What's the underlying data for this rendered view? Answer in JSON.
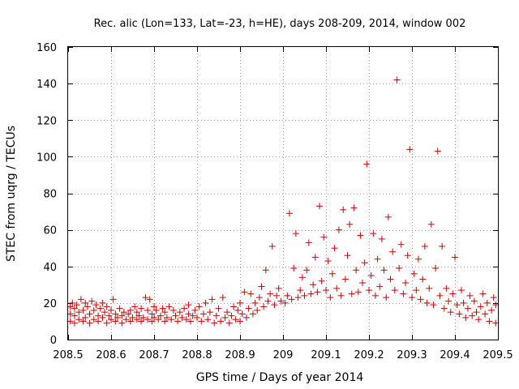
{
  "chart_data": {
    "type": "scatter",
    "title": "Rec. alic (Lon=133, Lat=-23, h=HE), days 208-209, 2014, window 002",
    "xlabel": "GPS time / Days of year 2014",
    "ylabel": "STEC from uqrg / TECUs",
    "xlim": [
      208.5,
      209.5
    ],
    "ylim": [
      0,
      160
    ],
    "x_ticks": [
      208.5,
      208.6,
      208.7,
      208.8,
      208.9,
      209.0,
      209.1,
      209.2,
      209.3,
      209.4,
      209.5
    ],
    "x_tick_labels": [
      "208.5",
      "208.6",
      "208.7",
      "208.8",
      "208.9",
      "209",
      "209.1",
      "209.2",
      "209.3",
      "209.4",
      "209.5"
    ],
    "y_ticks": [
      0,
      20,
      40,
      60,
      80,
      100,
      120,
      140,
      160
    ],
    "y_tick_labels": [
      "0",
      "20",
      "40",
      "60",
      "80",
      "100",
      "120",
      "140",
      "160"
    ],
    "grid": true,
    "marker": "+",
    "marker_color": "#cc0000",
    "series": [
      {
        "name": "STEC",
        "points": [
          [
            208.505,
            10
          ],
          [
            208.505,
            14
          ],
          [
            208.505,
            18
          ],
          [
            208.51,
            20
          ],
          [
            208.515,
            9
          ],
          [
            208.515,
            13
          ],
          [
            208.515,
            17
          ],
          [
            208.52,
            19
          ],
          [
            208.525,
            11
          ],
          [
            208.525,
            15
          ],
          [
            208.53,
            22
          ],
          [
            208.535,
            10
          ],
          [
            208.535,
            16
          ],
          [
            208.54,
            12
          ],
          [
            208.54,
            20
          ],
          [
            208.545,
            18
          ],
          [
            208.55,
            9
          ],
          [
            208.55,
            14
          ],
          [
            208.555,
            21
          ],
          [
            208.56,
            11
          ],
          [
            208.56,
            16
          ],
          [
            208.565,
            19
          ],
          [
            208.57,
            10
          ],
          [
            208.57,
            13
          ],
          [
            208.575,
            17
          ],
          [
            208.58,
            12
          ],
          [
            208.58,
            20
          ],
          [
            208.585,
            15
          ],
          [
            208.59,
            9
          ],
          [
            208.59,
            18
          ],
          [
            208.595,
            13
          ],
          [
            208.6,
            11
          ],
          [
            208.6,
            16
          ],
          [
            208.605,
            22
          ],
          [
            208.61,
            10
          ],
          [
            208.61,
            14
          ],
          [
            208.615,
            12
          ],
          [
            208.62,
            17
          ],
          [
            208.625,
            9
          ],
          [
            208.625,
            13
          ],
          [
            208.63,
            15
          ],
          [
            208.635,
            11
          ],
          [
            208.64,
            14
          ],
          [
            208.645,
            10
          ],
          [
            208.645,
            16
          ],
          [
            208.65,
            12
          ],
          [
            208.655,
            18
          ],
          [
            208.66,
            11
          ],
          [
            208.66,
            15
          ],
          [
            208.665,
            13
          ],
          [
            208.67,
            10
          ],
          [
            208.67,
            17
          ],
          [
            208.675,
            12
          ],
          [
            208.68,
            23
          ],
          [
            208.685,
            11
          ],
          [
            208.685,
            16
          ],
          [
            208.69,
            22
          ],
          [
            208.695,
            10
          ],
          [
            208.695,
            14
          ],
          [
            208.7,
            12
          ],
          [
            208.7,
            18
          ],
          [
            208.705,
            16
          ],
          [
            208.71,
            11
          ],
          [
            208.715,
            13
          ],
          [
            208.72,
            17
          ],
          [
            208.725,
            10
          ],
          [
            208.725,
            15
          ],
          [
            208.73,
            12
          ],
          [
            208.735,
            18
          ],
          [
            208.74,
            11
          ],
          [
            208.745,
            16
          ],
          [
            208.75,
            13
          ],
          [
            208.755,
            10
          ],
          [
            208.76,
            15
          ],
          [
            208.765,
            12
          ],
          [
            208.77,
            17
          ],
          [
            208.775,
            11
          ],
          [
            208.78,
            14
          ],
          [
            208.78,
            19
          ],
          [
            208.785,
            10
          ],
          [
            208.79,
            13
          ],
          [
            208.795,
            16
          ],
          [
            208.8,
            12
          ],
          [
            208.805,
            18
          ],
          [
            208.81,
            10
          ],
          [
            208.815,
            14
          ],
          [
            208.82,
            20
          ],
          [
            208.825,
            11
          ],
          [
            208.83,
            15
          ],
          [
            208.835,
            22
          ],
          [
            208.84,
            9
          ],
          [
            208.845,
            13
          ],
          [
            208.85,
            17
          ],
          [
            208.855,
            10
          ],
          [
            208.86,
            23
          ],
          [
            208.865,
            12
          ],
          [
            208.87,
            15
          ],
          [
            208.875,
            9
          ],
          [
            208.88,
            13
          ],
          [
            208.885,
            18
          ],
          [
            208.89,
            11
          ],
          [
            208.895,
            16
          ],
          [
            208.9,
            10
          ],
          [
            208.9,
            20
          ],
          [
            208.905,
            14
          ],
          [
            208.91,
            26
          ],
          [
            208.915,
            12
          ],
          [
            208.92,
            17
          ],
          [
            208.925,
            25
          ],
          [
            208.93,
            14
          ],
          [
            208.935,
            20
          ],
          [
            208.94,
            16
          ],
          [
            208.945,
            23
          ],
          [
            208.95,
            29
          ],
          [
            208.955,
            18
          ],
          [
            208.96,
            38
          ],
          [
            208.965,
            21
          ],
          [
            208.97,
            25
          ],
          [
            208.975,
            51
          ],
          [
            208.98,
            19
          ],
          [
            208.985,
            24
          ],
          [
            208.99,
            28
          ],
          [
            208.995,
            21
          ],
          [
            209.005,
            20
          ],
          [
            209.01,
            24
          ],
          [
            209.015,
            69
          ],
          [
            209.02,
            22
          ],
          [
            209.025,
            39
          ],
          [
            209.03,
            58
          ],
          [
            209.035,
            23
          ],
          [
            209.04,
            27
          ],
          [
            209.045,
            34
          ],
          [
            209.05,
            24
          ],
          [
            209.055,
            38
          ],
          [
            209.06,
            53
          ],
          [
            209.065,
            25
          ],
          [
            209.07,
            30
          ],
          [
            209.075,
            45
          ],
          [
            209.08,
            26
          ],
          [
            209.085,
            73
          ],
          [
            209.09,
            32
          ],
          [
            209.095,
            56
          ],
          [
            209.1,
            27
          ],
          [
            209.105,
            43
          ],
          [
            209.11,
            23
          ],
          [
            209.115,
            36
          ],
          [
            209.12,
            50
          ],
          [
            209.125,
            28
          ],
          [
            209.13,
            60
          ],
          [
            209.135,
            24
          ],
          [
            209.14,
            71
          ],
          [
            209.145,
            33
          ],
          [
            209.15,
            46
          ],
          [
            209.155,
            63
          ],
          [
            209.16,
            25
          ],
          [
            209.165,
            72
          ],
          [
            209.17,
            38
          ],
          [
            209.175,
            26
          ],
          [
            209.18,
            57
          ],
          [
            209.185,
            31
          ],
          [
            209.19,
            42
          ],
          [
            209.195,
            96
          ],
          [
            209.2,
            27
          ],
          [
            209.205,
            35
          ],
          [
            209.21,
            58
          ],
          [
            209.215,
            24
          ],
          [
            209.22,
            44
          ],
          [
            209.225,
            29
          ],
          [
            209.23,
            55
          ],
          [
            209.235,
            38
          ],
          [
            209.24,
            23
          ],
          [
            209.245,
            67
          ],
          [
            209.25,
            33
          ],
          [
            209.255,
            48
          ],
          [
            209.26,
            27
          ],
          [
            209.265,
            142
          ],
          [
            209.27,
            39
          ],
          [
            209.275,
            52
          ],
          [
            209.28,
            25
          ],
          [
            209.285,
            31
          ],
          [
            209.29,
            46
          ],
          [
            209.295,
            104
          ],
          [
            209.3,
            23
          ],
          [
            209.305,
            36
          ],
          [
            209.31,
            27
          ],
          [
            209.315,
            44
          ],
          [
            209.32,
            22
          ],
          [
            209.325,
            33
          ],
          [
            209.33,
            51
          ],
          [
            209.335,
            20
          ],
          [
            209.34,
            28
          ],
          [
            209.345,
            63
          ],
          [
            209.35,
            19
          ],
          [
            209.355,
            39
          ],
          [
            209.36,
            103
          ],
          [
            209.365,
            24
          ],
          [
            209.37,
            51
          ],
          [
            209.375,
            17
          ],
          [
            209.38,
            28
          ],
          [
            209.385,
            21
          ],
          [
            209.39,
            15
          ],
          [
            209.395,
            25
          ],
          [
            209.4,
            45
          ],
          [
            209.405,
            19
          ],
          [
            209.41,
            14
          ],
          [
            209.415,
            27
          ],
          [
            209.42,
            20
          ],
          [
            209.425,
            12
          ],
          [
            209.43,
            17
          ],
          [
            209.435,
            24
          ],
          [
            209.44,
            13
          ],
          [
            209.445,
            21
          ],
          [
            209.45,
            15
          ],
          [
            209.455,
            11
          ],
          [
            209.46,
            18
          ],
          [
            209.465,
            25
          ],
          [
            209.47,
            14
          ],
          [
            209.475,
            20
          ],
          [
            209.48,
            10
          ],
          [
            209.485,
            16
          ],
          [
            209.49,
            23
          ],
          [
            209.495,
            9
          ],
          [
            209.495,
            19
          ]
        ]
      }
    ]
  }
}
